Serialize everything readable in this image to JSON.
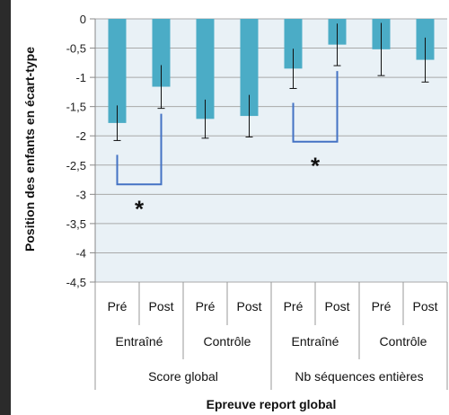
{
  "chart_data": {
    "type": "bar",
    "xlabel": "Epreuve report global",
    "ylabel": "Position des enfants en écart-type",
    "ylim": [
      -4.5,
      0
    ],
    "yticks": [
      "0",
      "-0,5",
      "-1",
      "-1,5",
      "-2",
      "-2,5",
      "-3",
      "-3,5",
      "-4",
      "-4,5"
    ],
    "ytick_values": [
      0,
      -0.5,
      -1,
      -1.5,
      -2,
      -2.5,
      -3,
      -3.5,
      -4,
      -4.5
    ],
    "grid": true,
    "bar_color": "#4bacc6",
    "plot_bg": "#e9f1f6",
    "bracket_color": "#4472c4",
    "categories": [
      "Pré",
      "Post",
      "Pré",
      "Post",
      "Pré",
      "Post",
      "Pré",
      "Post"
    ],
    "values": [
      -1.78,
      -1.16,
      -1.71,
      -1.66,
      -0.85,
      -0.44,
      -0.52,
      -0.7
    ],
    "error": [
      0.3,
      0.37,
      0.33,
      0.36,
      0.34,
      0.36,
      0.45,
      0.38
    ],
    "groups_level2": [
      "Entraîné",
      "Contrôle",
      "Entraîné",
      "Contrôle"
    ],
    "groups_level3": [
      "Score global",
      "Nb séquences entières"
    ],
    "annotations": [
      {
        "text": "*",
        "from_bar": 0,
        "to_bar": 1,
        "bracket_y": -2.83
      },
      {
        "text": "*",
        "from_bar": 4,
        "to_bar": 5,
        "bracket_y": -2.1
      }
    ]
  }
}
